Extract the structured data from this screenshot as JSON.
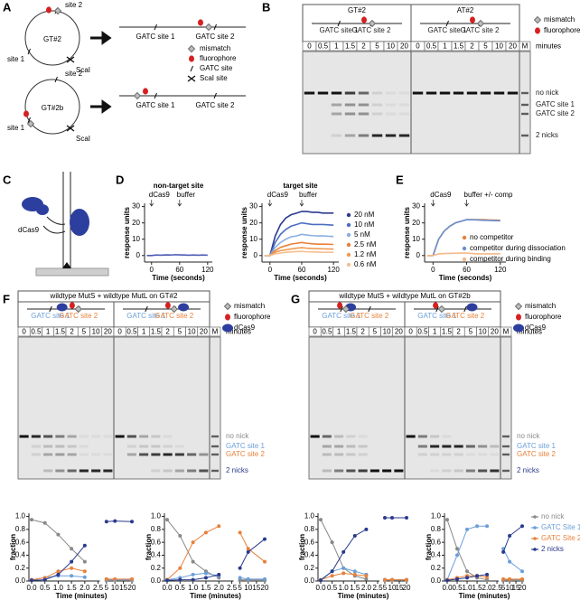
{
  "A": {
    "label": "A",
    "plasmids": [
      {
        "name": "GT#2",
        "site1": "site 1",
        "site2": "site 2",
        "scai": "ScaI",
        "gatc1": "GATC site 1",
        "gatc2": "GATC site 2"
      },
      {
        "name": "GT#2b",
        "site1": "site 1",
        "site2": "site 2",
        "scai": "ScaI",
        "gatc1": "GATC site 1",
        "gatc2": "GATC site 2"
      }
    ],
    "legend": [
      "mismatch",
      "fluorophore",
      "GATC site",
      "ScaI site"
    ]
  },
  "B": {
    "label": "B",
    "groups": [
      {
        "header": "GT#2",
        "gatc1": "GATC site 1",
        "gatc2": "GATC site 2",
        "lanes": [
          0,
          0.5,
          1,
          1.5,
          2,
          5,
          10,
          20
        ]
      },
      {
        "header": "AT#2",
        "gatc1": "GATC site 1",
        "gatc2": "GATC site 2",
        "lanes": [
          0,
          0.5,
          1,
          1.5,
          2,
          5,
          10,
          20
        ]
      }
    ],
    "marker": "M",
    "unit": "minutes",
    "legend": [
      "mismatch",
      "fluorophore"
    ],
    "bands": [
      {
        "text": "no nick"
      },
      {
        "text": "GATC site 1"
      },
      {
        "text": "GATC site 2"
      },
      {
        "text": "2 nicks"
      }
    ]
  },
  "C": {
    "label": "C",
    "protein": "dCas9"
  },
  "D": {
    "label": "D",
    "charts": [
      {
        "title": "non-target site",
        "ylabel": "response units",
        "xlabel": "Time (seconds)",
        "annotations": [
          {
            "text": "dCas9",
            "x": 0
          },
          {
            "text": "buffer",
            "x": 60
          }
        ],
        "xlim": [
          -15,
          130
        ],
        "ylim": [
          -4,
          32
        ],
        "xticks": [
          0,
          60,
          120
        ],
        "yticks": [
          0,
          10,
          20,
          30
        ],
        "x": [
          -10,
          0,
          10,
          20,
          30,
          40,
          50,
          60,
          70,
          80,
          90,
          100,
          110,
          120
        ],
        "series": [
          {
            "color": "#4f5bb5",
            "values": [
              0,
              0,
              0.3,
              0.2,
              0.4,
              0.3,
              0.5,
              0.4,
              0.3,
              0.2,
              0.3,
              0.2,
              0.3,
              0.2
            ]
          }
        ]
      },
      {
        "title": "target site",
        "ylabel": "response units",
        "xlabel": "Time (seconds)",
        "annotations": [
          {
            "text": "dCas9",
            "x": 0
          },
          {
            "text": "buffer",
            "x": 60
          }
        ],
        "xlim": [
          -15,
          130
        ],
        "ylim": [
          -4,
          32
        ],
        "xticks": [
          0,
          60,
          120
        ],
        "yticks": [
          0,
          10,
          20,
          30
        ],
        "x": [
          -10,
          0,
          10,
          20,
          30,
          40,
          50,
          60,
          70,
          80,
          90,
          100,
          110,
          120
        ],
        "series": [
          {
            "name": "20 nM",
            "color": "#2b3a8f",
            "values": [
              0,
              0,
              12,
              19,
              23,
              25,
              26,
              27,
              27,
              26.5,
              26.5,
              26,
              26,
              26
            ]
          },
          {
            "name": "10 nM",
            "color": "#4a6fc0",
            "values": [
              0,
              0,
              8,
              13,
              16,
              18,
              19,
              20,
              19.5,
              19,
              19,
              19,
              18.8,
              18.6
            ]
          },
          {
            "name": "5 nM",
            "color": "#8aaee0",
            "values": [
              0,
              0,
              5,
              8,
              10,
              11.5,
              12,
              13,
              12.5,
              12.2,
              12,
              12,
              11.8,
              11.7
            ]
          },
          {
            "name": "2.5 nM",
            "color": "#e8803a",
            "values": [
              0,
              0,
              3,
              5,
              6,
              7,
              7.5,
              8,
              7.5,
              7.2,
              7,
              7,
              6.9,
              6.8
            ]
          },
          {
            "name": "1.2 nM",
            "color": "#f09a55",
            "values": [
              0,
              0,
              2,
              3,
              3.5,
              4,
              4.5,
              4.8,
              4.5,
              4.3,
              4.2,
              4.1,
              4,
              4
            ]
          },
          {
            "name": "0.6 nM",
            "color": "#f5c090",
            "values": [
              0,
              0,
              1,
              1.5,
              2,
              2.2,
              2.4,
              2.5,
              2.3,
              2.2,
              2.1,
              2,
              2,
              2
            ]
          }
        ]
      }
    ]
  },
  "E": {
    "label": "E",
    "charts": [
      {
        "ylabel": "response units",
        "xlabel": "Time (seconds)",
        "annotations": [
          {
            "text": "dCas9",
            "x": 0
          },
          {
            "text": "buffer +/- comp",
            "x": 60
          }
        ],
        "xlim": [
          -15,
          130
        ],
        "ylim": [
          -4,
          32
        ],
        "xticks": [
          0,
          60,
          120
        ],
        "yticks": [
          0,
          10,
          20,
          30
        ],
        "x": [
          -10,
          0,
          10,
          20,
          30,
          40,
          50,
          60,
          70,
          80,
          90,
          100,
          110,
          120
        ],
        "series": [
          {
            "name": "no competitor",
            "color": "#e8803a",
            "values": [
              0,
              0,
              10,
              15,
              18,
              20,
              21,
              22,
              22,
              22,
              22,
              21.8,
              21.7,
              21.6
            ]
          },
          {
            "name": "competitor during dissociation",
            "color": "#6a8fd0",
            "values": [
              0,
              0,
              10,
              15,
              18,
              20,
              21,
              22,
              21.9,
              21.8,
              21.6,
              21.5,
              21.4,
              21.3
            ]
          },
          {
            "name": "competitor during binding",
            "color": "#f5b888",
            "values": [
              0,
              0,
              1,
              1.2,
              1.3,
              1.4,
              1.5,
              1.5,
              1.2,
              1,
              1,
              1,
              1,
              1
            ]
          }
        ]
      }
    ]
  },
  "F": {
    "label": "F",
    "title": "wildtype MutS + wildtype MutL on GT#2",
    "groups": [
      {
        "gatc1": "GATC site 1",
        "gatc2": "GATC site 2",
        "lanes": [
          0,
          0.5,
          1,
          1.5,
          2,
          5,
          10,
          20
        ]
      },
      {
        "gatc1": "GATC site 1",
        "gatc2": "GATC site 2",
        "lanes": [
          0,
          0.5,
          1,
          1.5,
          2,
          5,
          10,
          20
        ]
      }
    ],
    "marker": "M",
    "unit": "minutes",
    "legend": [
      "mismatch",
      "fluorophore",
      "dCas9"
    ],
    "bands": [
      {
        "text": "no nick",
        "color": "#888888"
      },
      {
        "text": "GATC site 1",
        "color": "#6a9fd8"
      },
      {
        "text": "GATC site 2",
        "color": "#e8803a"
      },
      {
        "text": "2 nicks",
        "color": "#2a3a8c"
      }
    ],
    "charts": [
      {
        "ylabel": "fraction",
        "xlabel": "Time (minutes)",
        "ylim": [
          0,
          1.05
        ],
        "yticks": [
          {
            "value": 0,
            "label": "0.0"
          },
          0.2,
          0.4,
          0.6,
          0.8,
          {
            "value": 1,
            "label": "1.0"
          }
        ],
        "segments": [
          {
            "xlim": [
              0,
              2.5
            ],
            "xticks": [
              {
                "value": 0,
                "label": "0.0"
              },
              0.5,
              {
                "value": 1,
                "label": "1.0"
              },
              1.5,
              {
                "value": 2,
                "label": "2.0"
              },
              2.5
            ]
          },
          {
            "xlim": [
              5,
              20
            ],
            "xticks": [
              5,
              10,
              15,
              20
            ]
          }
        ],
        "x": [
          0,
          0.5,
          1,
          1.5,
          2,
          5,
          10,
          20
        ],
        "series": [
          {
            "color": "#888888",
            "values": [
              0.95,
              0.9,
              0.72,
              0.5,
              0.3,
              0.03,
              0.02,
              0.02
            ]
          },
          {
            "color": "#6a9fd8",
            "values": [
              0.02,
              0.05,
              0.08,
              0.08,
              0.06,
              0.02,
              0.02,
              0.02
            ]
          },
          {
            "color": "#e8803a",
            "values": [
              0.02,
              0.05,
              0.15,
              0.2,
              0.15,
              0.03,
              0.03,
              0.03
            ]
          },
          {
            "color": "#2a3a8c",
            "values": [
              0.01,
              0.02,
              0.1,
              0.3,
              0.55,
              0.92,
              0.93,
              0.92
            ]
          }
        ]
      },
      {
        "ylabel": "fraction",
        "xlabel": "Time (minutes)",
        "ylim": [
          0,
          1.05
        ],
        "yticks": [
          {
            "value": 0,
            "label": "0.0"
          },
          0.2,
          0.4,
          0.6,
          0.8,
          {
            "value": 1,
            "label": "1.0"
          }
        ],
        "segments": [
          {
            "xlim": [
              0,
              2.5
            ],
            "xticks": [
              {
                "value": 0,
                "label": "0.0"
              },
              0.5,
              {
                "value": 1,
                "label": "1.0"
              },
              1.5,
              {
                "value": 2,
                "label": "2.0"
              },
              2.5
            ]
          },
          {
            "xlim": [
              5,
              20
            ],
            "xticks": [
              5,
              10,
              15,
              20
            ]
          }
        ],
        "x": [
          0,
          0.5,
          1,
          1.5,
          2,
          5,
          10,
          20
        ],
        "series": [
          {
            "color": "#888888",
            "values": [
              0.95,
              0.7,
              0.3,
              0.15,
              0.05,
              0.02,
              0.02,
              0.02
            ]
          },
          {
            "color": "#6a9fd8",
            "values": [
              0.02,
              0.05,
              0.1,
              0.12,
              0.08,
              0.05,
              0.03,
              0.03
            ]
          },
          {
            "color": "#e8803a",
            "values": [
              0.02,
              0.2,
              0.6,
              0.75,
              0.85,
              0.75,
              0.5,
              0.3
            ]
          },
          {
            "color": "#2a3a8c",
            "values": [
              0.01,
              0.02,
              0.02,
              0.05,
              0.1,
              0.2,
              0.45,
              0.65
            ]
          }
        ]
      }
    ]
  },
  "G": {
    "label": "G",
    "title": "wildtype MutS + wildtype MutL on GT#2b",
    "groups": [
      {
        "gatc1": "GATC site 1",
        "gatc2": "GATC site 2",
        "lanes": [
          0,
          0.5,
          1,
          1.5,
          2,
          5,
          10,
          20
        ]
      },
      {
        "gatc1": "GATC site 1",
        "gatc2": "GATC site 2",
        "lanes": [
          0,
          0.5,
          1,
          1.5,
          2,
          5,
          10,
          20
        ]
      }
    ],
    "marker": "M",
    "unit": "minutes",
    "legend": [
      "mismatch",
      "fluorophore",
      "dCas9"
    ],
    "bands": [
      {
        "text": "no nick",
        "color": "#888888"
      },
      {
        "text": "GATC site 1",
        "color": "#6a9fd8"
      },
      {
        "text": "GATC site 2",
        "color": "#e8803a"
      },
      {
        "text": "2 nicks",
        "color": "#2a3a8c"
      }
    ],
    "chart_legend": [
      {
        "name": "no nick",
        "color": "#888888"
      },
      {
        "name": "GATC Site 1",
        "color": "#6a9fd8"
      },
      {
        "name": "GATC Site 2",
        "color": "#e8803a"
      },
      {
        "name": "2 nicks",
        "color": "#2a3a8c"
      }
    ],
    "charts": [
      {
        "ylabel": "fraction",
        "xlabel": "Time (minutes)",
        "ylim": [
          0,
          1.05
        ],
        "yticks": [
          {
            "value": 0,
            "label": "0.0"
          },
          0.2,
          0.4,
          0.6,
          0.8,
          {
            "value": 1,
            "label": "1.0"
          }
        ],
        "segments": [
          {
            "xlim": [
              0,
              2.5
            ],
            "xticks": [
              {
                "value": 0,
                "label": "0.0"
              },
              0.5,
              {
                "value": 1,
                "label": "1.0"
              },
              1.5,
              {
                "value": 2,
                "label": "2.0"
              },
              2.5
            ]
          },
          {
            "xlim": [
              5,
              20
            ],
            "xticks": [
              5,
              10,
              15,
              20
            ]
          }
        ],
        "x": [
          0,
          0.5,
          1,
          1.5,
          2,
          5,
          10,
          20
        ],
        "series": [
          {
            "color": "#888888",
            "values": [
              0.95,
              0.6,
              0.2,
              0.08,
              0.03,
              0.02,
              0.02,
              0.02
            ]
          },
          {
            "color": "#6a9fd8",
            "values": [
              0.02,
              0.15,
              0.2,
              0.15,
              0.1,
              0.02,
              0.02,
              0.02
            ]
          },
          {
            "color": "#e8803a",
            "values": [
              0.02,
              0.08,
              0.12,
              0.1,
              0.08,
              0.02,
              0.02,
              0.02
            ]
          },
          {
            "color": "#2a3a8c",
            "values": [
              0.01,
              0.15,
              0.45,
              0.7,
              0.8,
              0.98,
              0.98,
              0.98
            ]
          }
        ]
      },
      {
        "ylabel": "fraction",
        "xlabel": "Time (minutes)",
        "ylim": [
          0,
          1.05
        ],
        "yticks": [
          {
            "value": 0,
            "label": "0.0"
          },
          0.2,
          0.4,
          0.6,
          0.8,
          {
            "value": 1,
            "label": "1.0"
          }
        ],
        "segments": [
          {
            "xlim": [
              0,
              2.5
            ],
            "xticks": [
              {
                "value": 0,
                "label": "0.0"
              },
              0.5,
              {
                "value": 1,
                "label": "1.0"
              },
              1.5,
              {
                "value": 2,
                "label": "2.0"
              },
              2.5
            ]
          },
          {
            "xlim": [
              5,
              20
            ],
            "xticks": [
              5,
              10,
              15,
              20
            ]
          }
        ],
        "x": [
          0,
          0.5,
          1,
          1.5,
          2,
          5,
          10,
          20
        ],
        "series": [
          {
            "color": "#888888",
            "values": [
              0.95,
              0.5,
              0.15,
              0.05,
              0.02,
              0.02,
              0.02,
              0.02
            ]
          },
          {
            "color": "#6a9fd8",
            "values": [
              0.02,
              0.4,
              0.8,
              0.85,
              0.85,
              0.5,
              0.3,
              0.15
            ]
          },
          {
            "color": "#e8803a",
            "values": [
              0.02,
              0.05,
              0.08,
              0.08,
              0.06,
              0.03,
              0.03,
              0.03
            ]
          },
          {
            "color": "#2a3a8c",
            "values": [
              0.01,
              0.03,
              0.05,
              0.08,
              0.1,
              0.45,
              0.7,
              0.85
            ]
          }
        ]
      }
    ]
  }
}
